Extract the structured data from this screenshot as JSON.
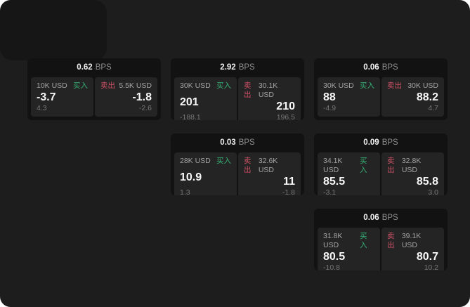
{
  "colors": {
    "page_bg": "#1d1d1d",
    "corner_bg": "#161616",
    "card_bg": "#121212",
    "panel_bg": "#242424",
    "buy_green": "#36b176",
    "sell_red": "#cf5166"
  },
  "labels": {
    "bps_unit": "BPS",
    "buy": "买入",
    "sell": "卖出"
  },
  "cards": [
    {
      "bps": "0.62",
      "buy": {
        "amount": "10K USD",
        "side": "买入",
        "value": "-3.7",
        "sub": "4.3"
      },
      "sell": {
        "amount": "5.5K USD",
        "side": "卖出",
        "value": "-1.8",
        "sub": "-2.6"
      }
    },
    {
      "bps": "2.92",
      "buy": {
        "amount": "30K USD",
        "side": "买入",
        "value": "201",
        "sub": "-188.1"
      },
      "sell": {
        "amount": "30.1K USD",
        "side": "卖出",
        "value": "210",
        "sub": "196.5"
      }
    },
    {
      "bps": "0.06",
      "buy": {
        "amount": "30K USD",
        "side": "买入",
        "value": "88",
        "sub": "-4.9"
      },
      "sell": {
        "amount": "30K USD",
        "side": "卖出",
        "value": "88.2",
        "sub": "4.7"
      }
    },
    {
      "bps": "0.03",
      "buy": {
        "amount": "28K USD",
        "side": "买入",
        "value": "10.9",
        "sub": "1.3"
      },
      "sell": {
        "amount": "32.6K USD",
        "side": "卖出",
        "value": "11",
        "sub": "-1.8"
      }
    },
    {
      "bps": "0.09",
      "buy": {
        "amount": "34.1K USD",
        "side": "买入",
        "value": "85.5",
        "sub": "-3.1"
      },
      "sell": {
        "amount": "32.8K USD",
        "side": "卖出",
        "value": "85.8",
        "sub": "3.0"
      }
    },
    {
      "bps": "0.06",
      "buy": {
        "amount": "31.8K USD",
        "side": "买入",
        "value": "80.5",
        "sub": "-10.8"
      },
      "sell": {
        "amount": "39.1K USD",
        "side": "卖出",
        "value": "80.7",
        "sub": "10.2"
      }
    }
  ]
}
